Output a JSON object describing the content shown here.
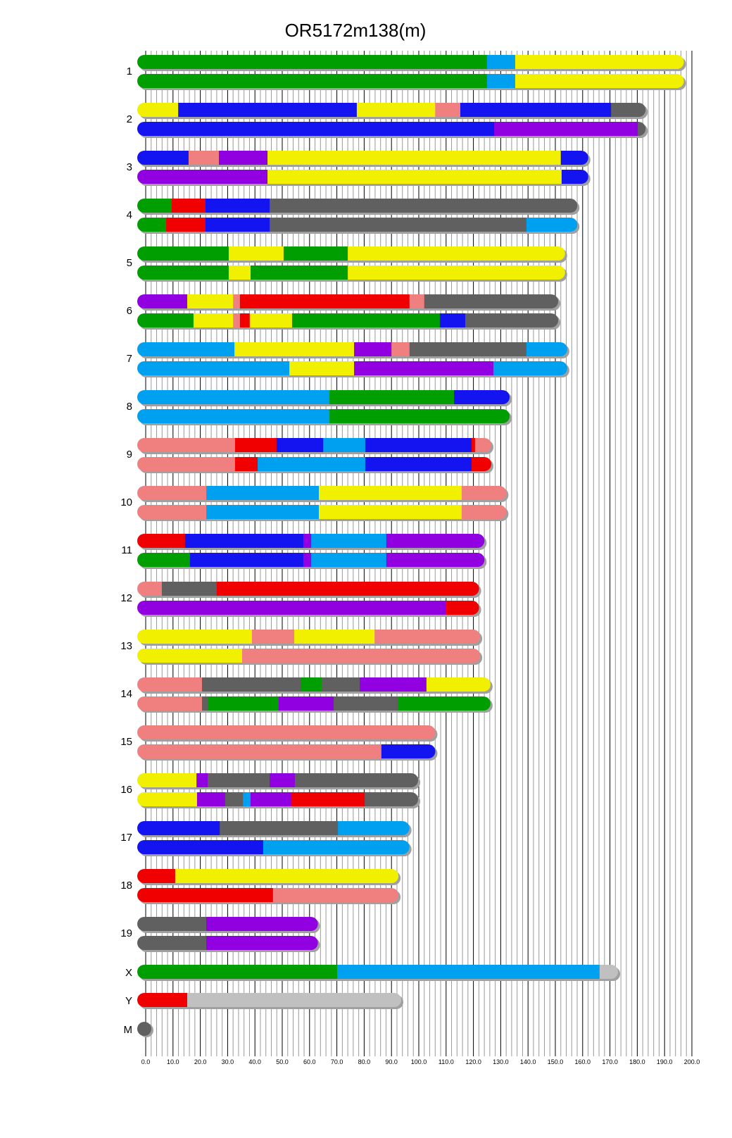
{
  "chart_data": {
    "type": "chromosome-painting",
    "title": "OR5172m138(m)",
    "xlim": [
      0,
      200
    ],
    "x_ticks": [
      "0.0",
      "10.0",
      "20.0",
      "30.0",
      "40.0",
      "50.0",
      "60.0",
      "70.0",
      "80.0",
      "90.0",
      "100.0",
      "110.0",
      "120.0",
      "130.0",
      "140.0",
      "150.0",
      "160.0",
      "170.0",
      "180.0",
      "190.0",
      "200.0"
    ],
    "grid": "vertical, minor every 2, major every 10",
    "colors": {
      "G": "#009e00",
      "B": "#1414f0",
      "Y": "#f0f000",
      "L": "#00a0f0",
      "S": "#f08080",
      "D": "#606060",
      "P": "#9000e0",
      "R": "#f00000",
      "N": "#c0c0c0"
    },
    "chromosomes": [
      {
        "name": "1",
        "length": 195,
        "haplotypes": [
          [
            [
              "G",
              125
            ],
            [
              "L",
              135.3
            ],
            [
              "Y",
              195
            ]
          ],
          [
            [
              "G",
              125
            ],
            [
              "L",
              135.3
            ],
            [
              "Y",
              195
            ]
          ]
        ]
      },
      {
        "name": "2",
        "length": 181,
        "haplotypes": [
          [
            [
              "Y",
              11.9
            ],
            [
              "B",
              77.3
            ],
            [
              "Y",
              106
            ],
            [
              "S",
              115.2
            ],
            [
              "B",
              170.4
            ],
            [
              "D",
              181
            ]
          ],
          [
            [
              "B",
              127.6
            ],
            [
              "P",
              180.2
            ],
            [
              "D",
              181
            ]
          ]
        ]
      },
      {
        "name": "3",
        "length": 160,
        "haplotypes": [
          [
            [
              "B",
              15.7
            ],
            [
              "S",
              26.8
            ],
            [
              "P",
              44.6
            ],
            [
              "Y",
              152
            ],
            [
              "B",
              160
            ]
          ],
          [
            [
              "P",
              44.6
            ],
            [
              "Y",
              152.3
            ],
            [
              "B",
              160
            ]
          ]
        ]
      },
      {
        "name": "4",
        "length": 156,
        "haplotypes": [
          [
            [
              "G",
              9.5
            ],
            [
              "R",
              21.9
            ],
            [
              "B",
              45.4
            ],
            [
              "D",
              156
            ]
          ],
          [
            [
              "G",
              7.5
            ],
            [
              "R",
              21.9
            ],
            [
              "B",
              45.4
            ],
            [
              "D",
              139.4
            ],
            [
              "L",
              156
            ]
          ]
        ]
      },
      {
        "name": "5",
        "length": 151.5,
        "haplotypes": [
          [
            [
              "G",
              30.4
            ],
            [
              "Y",
              50.5
            ],
            [
              "G",
              74
            ],
            [
              "Y",
              151.5
            ]
          ],
          [
            [
              "G",
              30.4
            ],
            [
              "Y",
              38.4
            ],
            [
              "G",
              74
            ],
            [
              "Y",
              151.5
            ]
          ]
        ]
      },
      {
        "name": "6",
        "length": 149,
        "haplotypes": [
          [
            [
              "P",
              15.2
            ],
            [
              "Y",
              32
            ],
            [
              "S",
              34.5
            ],
            [
              "R",
              96.6
            ],
            [
              "S",
              102
            ],
            [
              "D",
              149
            ]
          ],
          [
            [
              "G",
              17.5
            ],
            [
              "Y",
              32
            ],
            [
              "S",
              34.5
            ],
            [
              "R",
              38.1
            ],
            [
              "Y",
              53.6
            ],
            [
              "G",
              107.7
            ],
            [
              "B",
              117
            ],
            [
              "D",
              149
            ]
          ]
        ]
      },
      {
        "name": "7",
        "length": 152.3,
        "haplotypes": [
          [
            [
              "L",
              32.5
            ],
            [
              "Y",
              76.3
            ],
            [
              "P",
              90
            ],
            [
              "S",
              96.6
            ],
            [
              "D",
              139.4
            ],
            [
              "L",
              152.3
            ]
          ],
          [
            [
              "L",
              52.6
            ],
            [
              "Y",
              76.3
            ],
            [
              "P",
              127.3
            ],
            [
              "L",
              152.3
            ]
          ]
        ]
      },
      {
        "name": "8",
        "length": 131.2,
        "haplotypes": [
          [
            [
              "L",
              67.3
            ],
            [
              "G",
              112.9
            ],
            [
              "B",
              131.2
            ]
          ],
          [
            [
              "L",
              67.3
            ],
            [
              "G",
              131.2
            ]
          ]
        ]
      },
      {
        "name": "9",
        "length": 124.5,
        "haplotypes": [
          [
            [
              "S",
              32.7
            ],
            [
              "R",
              47.9
            ],
            [
              "B",
              65
            ],
            [
              "L",
              80.4
            ],
            [
              "B",
              119.3
            ],
            [
              "R",
              120.6
            ],
            [
              "S",
              124.5
            ]
          ],
          [
            [
              "S",
              32.7
            ],
            [
              "R",
              41
            ],
            [
              "L",
              80.4
            ],
            [
              "B",
              119.3
            ],
            [
              "R",
              124.5
            ]
          ]
        ]
      },
      {
        "name": "10",
        "length": 130,
        "haplotypes": [
          [
            [
              "S",
              22.2
            ],
            [
              "L",
              63.4
            ],
            [
              "Y",
              115.7
            ],
            [
              "S",
              130
            ]
          ],
          [
            [
              "S",
              22.2
            ],
            [
              "L",
              63.4
            ],
            [
              "Y",
              115.7
            ],
            [
              "S",
              130
            ]
          ]
        ]
      },
      {
        "name": "11",
        "length": 122,
        "haplotypes": [
          [
            [
              "R",
              14.4
            ],
            [
              "B",
              57.7
            ],
            [
              "P",
              60.6
            ],
            [
              "L",
              88.1
            ],
            [
              "P",
              122
            ]
          ],
          [
            [
              "G",
              16.2
            ],
            [
              "B",
              57.7
            ],
            [
              "P",
              60.6
            ],
            [
              "L",
              88.1
            ],
            [
              "P",
              122
            ]
          ]
        ]
      },
      {
        "name": "12",
        "length": 120,
        "haplotypes": [
          [
            [
              "S",
              5.9
            ],
            [
              "D",
              26
            ],
            [
              "R",
              120
            ]
          ],
          [
            [
              "P",
              109.8
            ],
            [
              "R",
              120
            ]
          ]
        ]
      },
      {
        "name": "13",
        "length": 120.4,
        "haplotypes": [
          [
            [
              "Y",
              38.9
            ],
            [
              "S",
              54.4
            ],
            [
              "Y",
              83.8
            ],
            [
              "S",
              120.4
            ]
          ],
          [
            [
              "Y",
              35.3
            ],
            [
              "S",
              120.4
            ]
          ]
        ]
      },
      {
        "name": "14",
        "length": 124.2,
        "haplotypes": [
          [
            [
              "S",
              20.6
            ],
            [
              "D",
              56.7
            ],
            [
              "G",
              64.4
            ],
            [
              "D",
              78.4
            ],
            [
              "P",
              102.8
            ],
            [
              "Y",
              124.2
            ]
          ],
          [
            [
              "S",
              20.6
            ],
            [
              "D",
              22.7
            ],
            [
              "G",
              48.7
            ],
            [
              "P",
              68.8
            ],
            [
              "D",
              92.5
            ],
            [
              "G",
              124.2
            ]
          ]
        ]
      },
      {
        "name": "15",
        "length": 104,
        "haplotypes": [
          [
            [
              "S",
              104
            ]
          ],
          [
            [
              "S",
              86.3
            ],
            [
              "B",
              104
            ]
          ]
        ]
      },
      {
        "name": "16",
        "length": 97.7,
        "haplotypes": [
          [
            [
              "Y",
              18.6
            ],
            [
              "P",
              22.7
            ],
            [
              "D",
              45.4
            ],
            [
              "P",
              54.6
            ],
            [
              "D",
              97.7
            ]
          ],
          [
            [
              "Y",
              18.8
            ],
            [
              "P",
              29.1
            ],
            [
              "D",
              35.6
            ],
            [
              "L",
              38.4
            ],
            [
              "P",
              53.4
            ],
            [
              "R",
              80.2
            ],
            [
              "D",
              97.7
            ]
          ]
        ]
      },
      {
        "name": "17",
        "length": 94.5,
        "haplotypes": [
          [
            [
              "B",
              27.1
            ],
            [
              "D",
              70.4
            ],
            [
              "L",
              94.5
            ]
          ],
          [
            [
              "B",
              43
            ],
            [
              "L",
              94.5
            ]
          ]
        ]
      },
      {
        "name": "18",
        "length": 90.5,
        "haplotypes": [
          [
            [
              "R",
              10.8
            ],
            [
              "Y",
              90.5
            ]
          ],
          [
            [
              "R",
              46.6
            ],
            [
              "S",
              90.5
            ]
          ]
        ]
      },
      {
        "name": "19",
        "length": 61,
        "haplotypes": [
          [
            [
              "D",
              22.2
            ],
            [
              "P",
              61
            ]
          ],
          [
            [
              "D",
              22.2
            ],
            [
              "P",
              61
            ]
          ]
        ]
      },
      {
        "name": "X",
        "length": 170.9,
        "haplotypes": [
          [
            [
              "G",
              70.1
            ],
            [
              "L",
              166.2
            ],
            [
              "N",
              170.9
            ]
          ]
        ]
      },
      {
        "name": "Y",
        "length": 91.5,
        "haplotypes": [
          [
            [
              "R",
              15.2
            ],
            [
              "N",
              91.5
            ]
          ]
        ]
      },
      {
        "name": "M",
        "length": 0,
        "haplotypes": [
          [
            [
              "D",
              0
            ]
          ]
        ]
      }
    ]
  }
}
